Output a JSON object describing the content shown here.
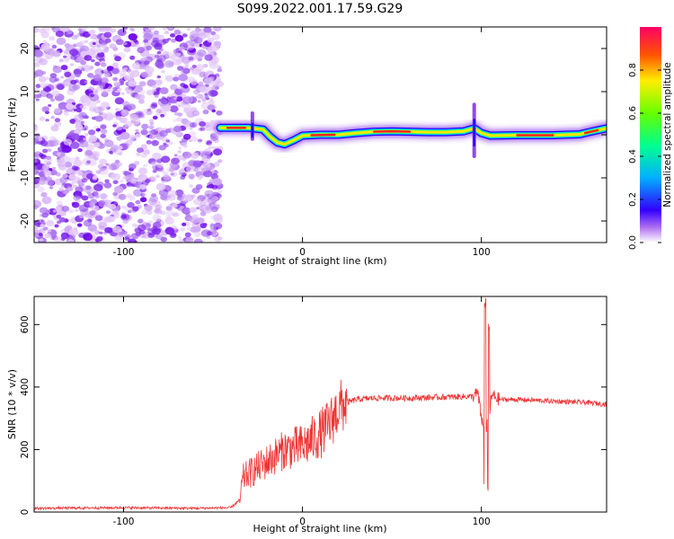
{
  "title": "S099.2022.001.17.59.G29",
  "chart_data": [
    {
      "type": "heatmap",
      "xlabel": "Height of straight line (km)",
      "ylabel": "Frequency (Hz)",
      "xlim": [
        -150,
        170
      ],
      "ylim": [
        -25,
        25
      ],
      "x_ticks": [
        -100,
        0,
        100
      ],
      "y_ticks": [
        -20,
        -10,
        0,
        10,
        20
      ],
      "noise_region_x": [
        -150,
        -46
      ],
      "ridge": [
        {
          "x": -46,
          "f": 1.6
        },
        {
          "x": -38,
          "f": 1.6
        },
        {
          "x": -30,
          "f": 1.6
        },
        {
          "x": -22,
          "f": 1.2
        },
        {
          "x": -18,
          "f": -0.5
        },
        {
          "x": -14,
          "f": -1.8
        },
        {
          "x": -10,
          "f": -2.2
        },
        {
          "x": -5,
          "f": -1.3
        },
        {
          "x": 0,
          "f": -0.2
        },
        {
          "x": 10,
          "f": 0.0
        },
        {
          "x": 20,
          "f": 0.0
        },
        {
          "x": 30,
          "f": 0.4
        },
        {
          "x": 40,
          "f": 0.7
        },
        {
          "x": 50,
          "f": 0.8
        },
        {
          "x": 60,
          "f": 0.7
        },
        {
          "x": 70,
          "f": 0.6
        },
        {
          "x": 80,
          "f": 0.6
        },
        {
          "x": 90,
          "f": 0.8
        },
        {
          "x": 96,
          "f": 1.5
        },
        {
          "x": 100,
          "f": 0.4
        },
        {
          "x": 105,
          "f": -0.2
        },
        {
          "x": 120,
          "f": -0.1
        },
        {
          "x": 140,
          "f": -0.1
        },
        {
          "x": 155,
          "f": 0.1
        },
        {
          "x": 160,
          "f": 0.6
        },
        {
          "x": 170,
          "f": 1.5
        }
      ],
      "colorbar": {
        "label": "Normalized spectral amplitude",
        "range": [
          0,
          1
        ],
        "ticks": [
          0.0,
          0.2,
          0.4,
          0.6,
          0.8
        ],
        "tick_labels": [
          "0.0",
          "0.2",
          "0.4",
          "0.6",
          "0.8"
        ]
      }
    },
    {
      "type": "line",
      "xlabel": "Height of straight line (km)",
      "ylabel": "SNR (10 * v/v)",
      "xlim": [
        -150,
        170
      ],
      "ylim": [
        0,
        690
      ],
      "x_ticks": [
        -100,
        0,
        100
      ],
      "y_ticks": [
        0,
        200,
        400,
        600
      ],
      "series": [
        {
          "color": "#ee3333",
          "points": [
            [
              -150,
              12
            ],
            [
              -100,
              14
            ],
            [
              -60,
              12
            ],
            [
              -40,
              14
            ],
            [
              -35,
              40
            ],
            [
              -33,
              110
            ],
            [
              -28,
              130
            ],
            [
              -20,
              160
            ],
            [
              -10,
              200
            ],
            [
              0,
              210
            ],
            [
              10,
              250
            ],
            [
              15,
              280
            ],
            [
              20,
              330
            ],
            [
              25,
              350
            ],
            [
              30,
              360
            ],
            [
              40,
              365
            ],
            [
              60,
              365
            ],
            [
              80,
              368
            ],
            [
              95,
              370
            ],
            [
              98,
              380
            ],
            [
              100,
              300
            ],
            [
              102,
              250
            ],
            [
              104,
              300
            ],
            [
              106,
              375
            ],
            [
              110,
              360
            ],
            [
              120,
              360
            ],
            [
              140,
              355
            ],
            [
              160,
              350
            ],
            [
              170,
              345
            ]
          ],
          "spikes": [
            {
              "x": 102,
              "max": 690,
              "min": 80
            },
            {
              "x": 104,
              "max": 610,
              "min": 58
            }
          ]
        }
      ]
    }
  ]
}
